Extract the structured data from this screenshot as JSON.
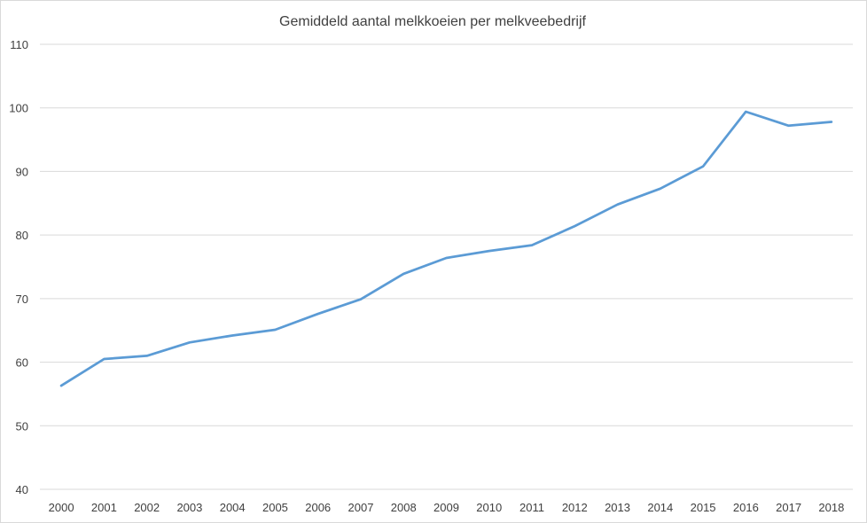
{
  "chart_data": {
    "type": "line",
    "title": "Gemiddeld aantal melkkoeien per melkveebedrijf",
    "xlabel": "",
    "ylabel": "",
    "categories": [
      "2000",
      "2001",
      "2002",
      "2003",
      "2004",
      "2005",
      "2006",
      "2007",
      "2008",
      "2009",
      "2010",
      "2011",
      "2012",
      "2013",
      "2014",
      "2015",
      "2016",
      "2017",
      "2018"
    ],
    "series": [
      {
        "name": "",
        "color": "#5b9bd5",
        "values": [
          56.3,
          60.5,
          61.0,
          63.1,
          64.2,
          65.1,
          67.6,
          69.9,
          73.9,
          76.4,
          77.5,
          78.4,
          81.4,
          84.8,
          87.3,
          90.8,
          99.4,
          97.2,
          97.8
        ]
      }
    ],
    "ylim": [
      40,
      110
    ],
    "yticks": [
      40,
      50,
      60,
      70,
      80,
      90,
      100,
      110
    ],
    "grid": true,
    "legend": "none"
  }
}
